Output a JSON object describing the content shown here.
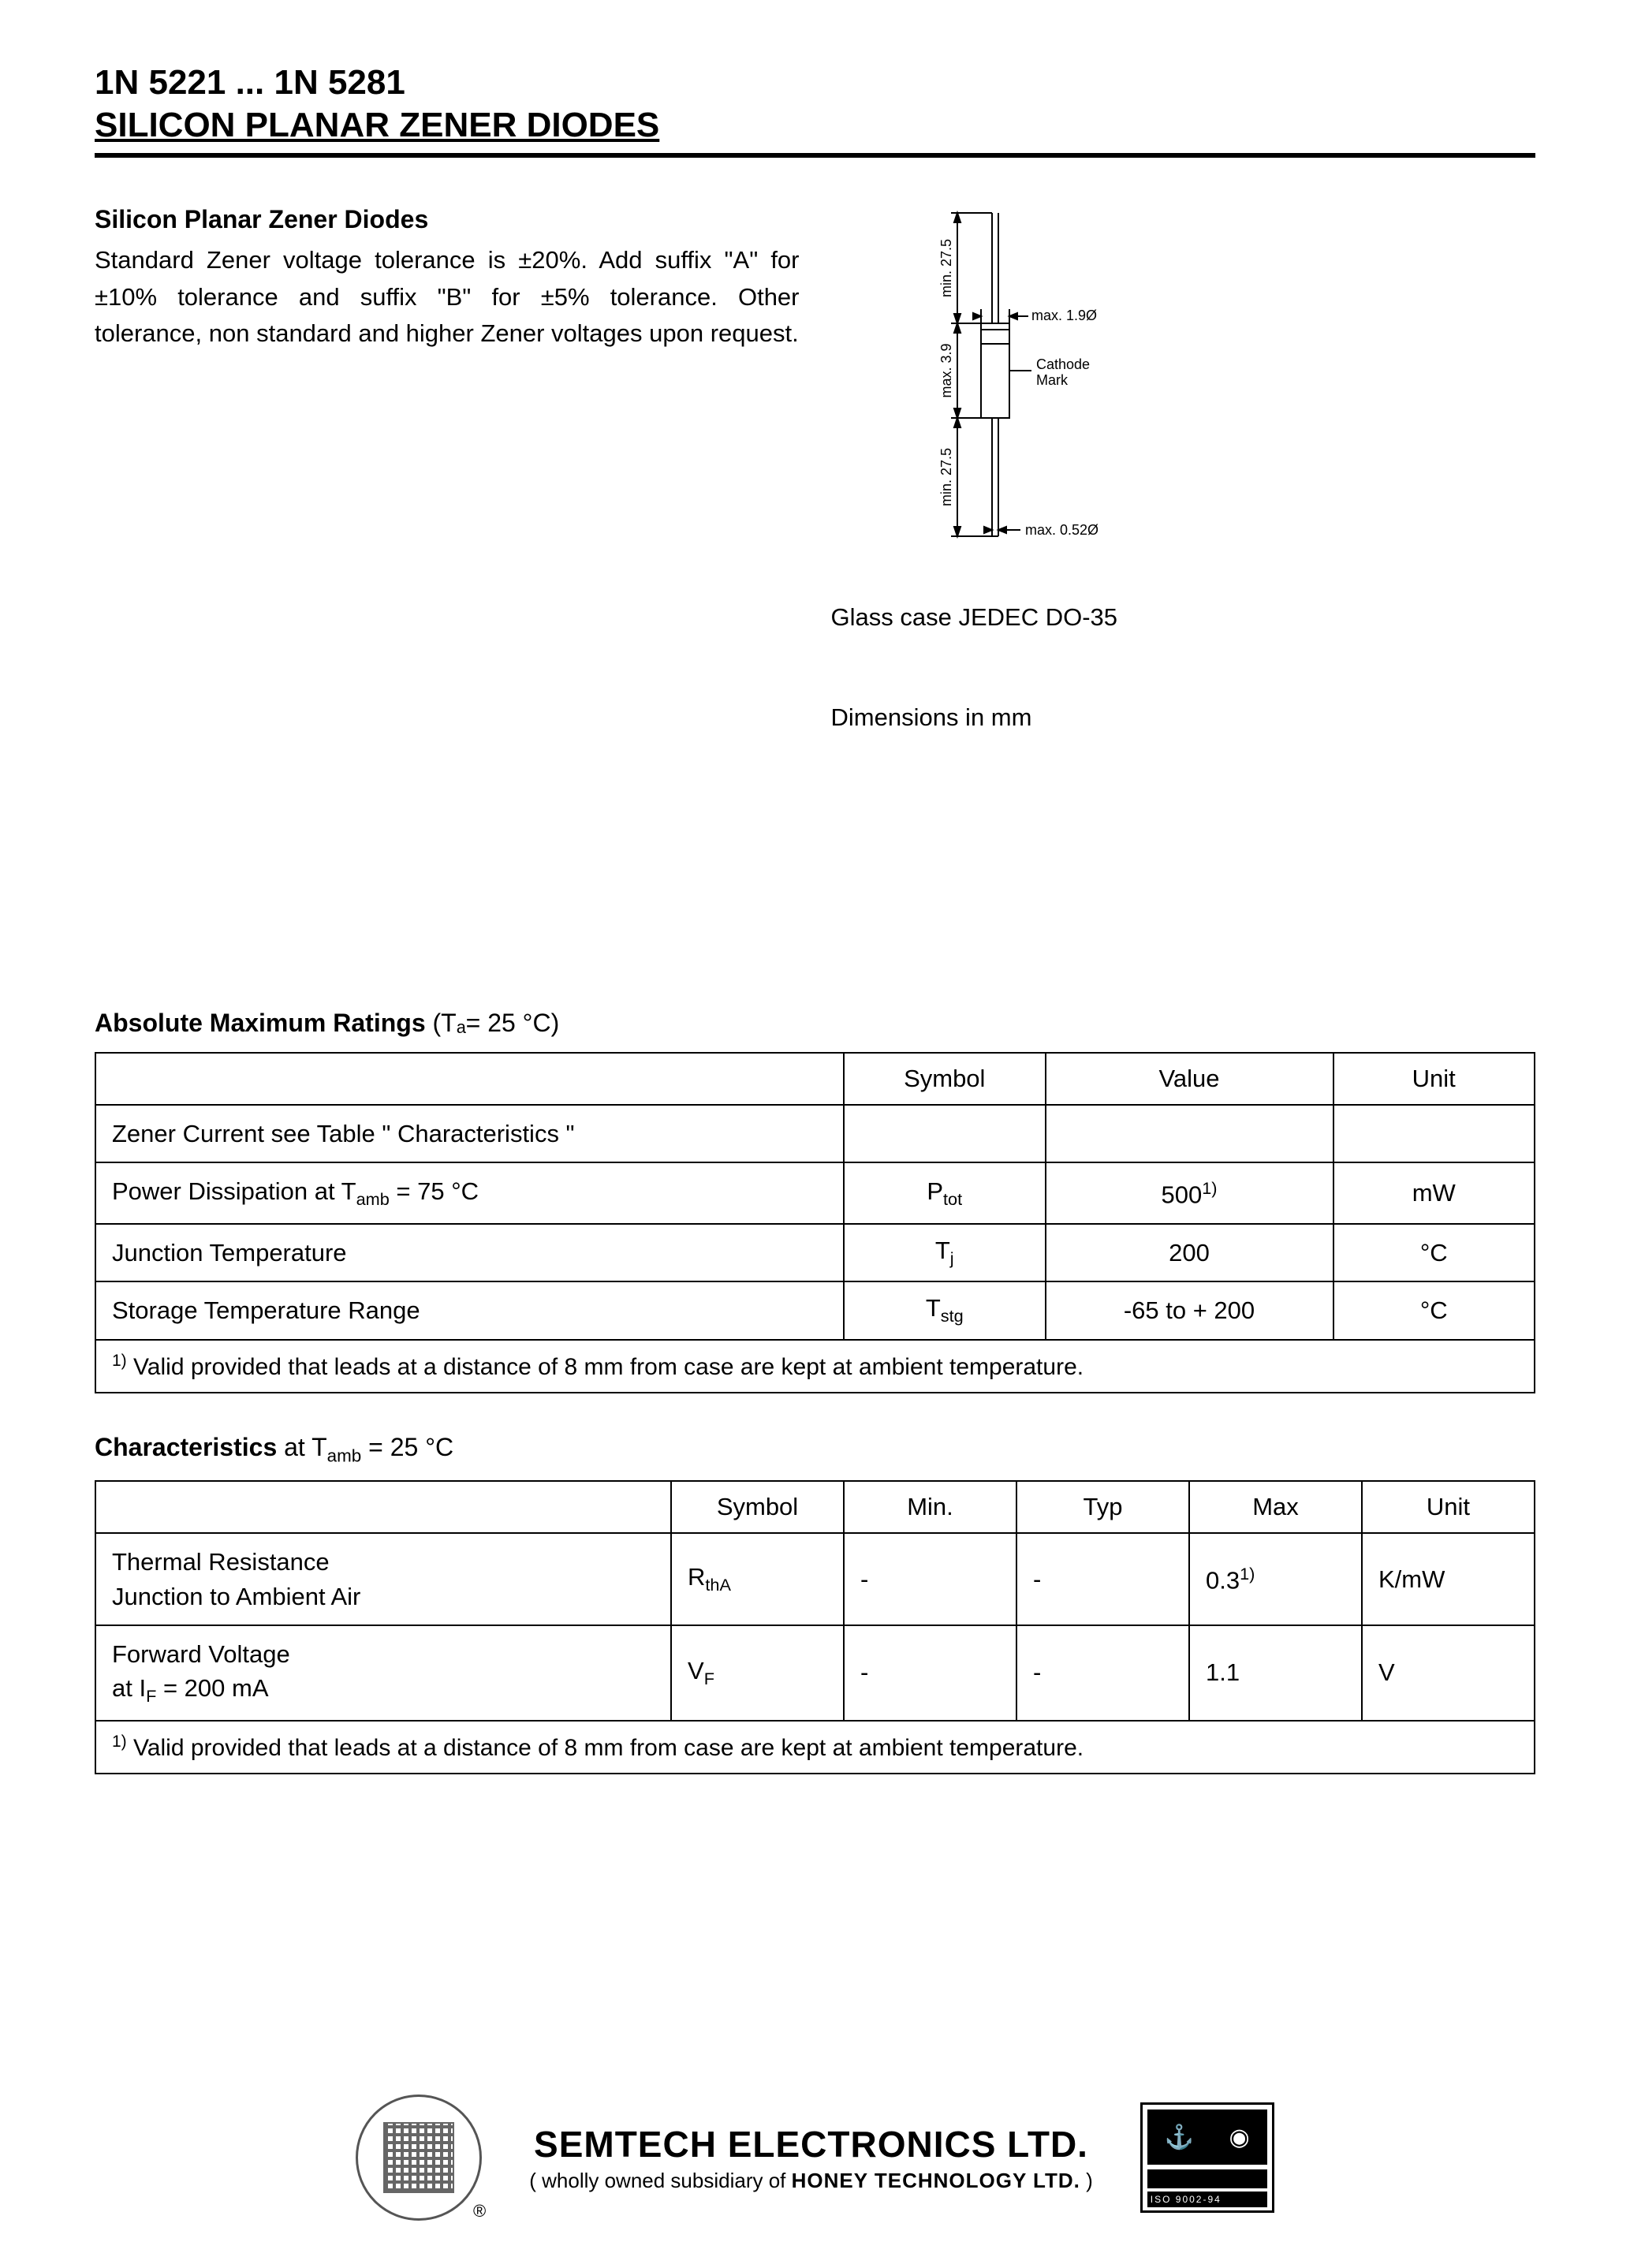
{
  "header": {
    "line1": "1N 5221 ... 1N 5281",
    "line2": "SILICON PLANAR ZENER DIODES"
  },
  "intro": {
    "heading": "Silicon Planar Zener Diodes",
    "paragraph": "Standard Zener voltage tolerance is ±20%. Add suffix \"A\" for ±10% tolerance and suffix \"B\" for ±5% tolerance. Other tolerance, non standard and higher Zener voltages upon request."
  },
  "package_diagram": {
    "lead_min_label": "min. 27.5",
    "body_max_label": "max. 3.9",
    "body_dia_label": "max. 1.9Ø",
    "cathode_label_1": "Cathode",
    "cathode_label_2": "Mark",
    "lead_dia_label": "max. 0.52Ø",
    "caption1": "Glass case JEDEC DO-35",
    "caption2": "Dimensions in mm",
    "stroke": "#000000",
    "font_size": 18
  },
  "ratings": {
    "title_bold": "Absolute Maximum Ratings",
    "title_rest": " (Tₐ= 25 °C)",
    "headers": [
      "",
      "Symbol",
      "Value",
      "Unit"
    ],
    "rows": [
      {
        "param_html": "Zener Current see Table \" Characteristics \"",
        "symbol": "",
        "value": "",
        "unit": ""
      },
      {
        "param_html": "Power Dissipation at T<sub class=\"sub-sm\">amb</sub> = 75 °C",
        "symbol": "P<sub class=\"sub-sm\">tot</sub>",
        "value": "500<span class=\"sup\">1)</span>",
        "unit": "mW"
      },
      {
        "param_html": "Junction Temperature",
        "symbol": "T<sub class=\"sub-sm\">j</sub>",
        "value": "200",
        "unit": "°C"
      },
      {
        "param_html": "Storage Temperature Range",
        "symbol": "T<sub class=\"sub-sm\">stg</sub>",
        "value": "-65 to + 200",
        "unit": "°C"
      }
    ],
    "footnote_html": "<span class=\"sup\">1)</span> Valid provided that leads at a distance of 8 mm from case are kept at ambient temperature."
  },
  "characteristics": {
    "title_bold": "Characteristics",
    "title_rest_html": " at T<sub class=\"sub-sm\">amb</sub> = 25 °C",
    "headers": [
      "",
      "Symbol",
      "Min.",
      "Typ",
      "Max",
      "Unit"
    ],
    "rows": [
      {
        "param_html": "Thermal Resistance<br>Junction to Ambient Air",
        "symbol": "R<sub class=\"sub-sm\">thA</sub>",
        "min": "-",
        "typ": "-",
        "max": "0.3<span class=\"sup\">1)</span>",
        "unit": "K/mW"
      },
      {
        "param_html": "Forward Voltage<br>at I<sub class=\"sub-sm\">F</sub> = 200 mA",
        "symbol": "V<sub class=\"sub-sm\">F</sub>",
        "min": "-",
        "typ": "-",
        "max": "1.1",
        "unit": "V"
      }
    ],
    "footnote_html": "<span class=\"sup\">1)</span> Valid provided that leads at a distance of 8 mm from case are kept at ambient temperature."
  },
  "footer": {
    "company": "SEMTECH ELECTRONICS LTD.",
    "subsidiary_prefix": "( wholly owned subsidiary of ",
    "subsidiary_bold": "HONEY TECHNOLOGY LTD.",
    "subsidiary_suffix": " )",
    "reg": "®",
    "cert_text": "ISO 9002-94"
  }
}
